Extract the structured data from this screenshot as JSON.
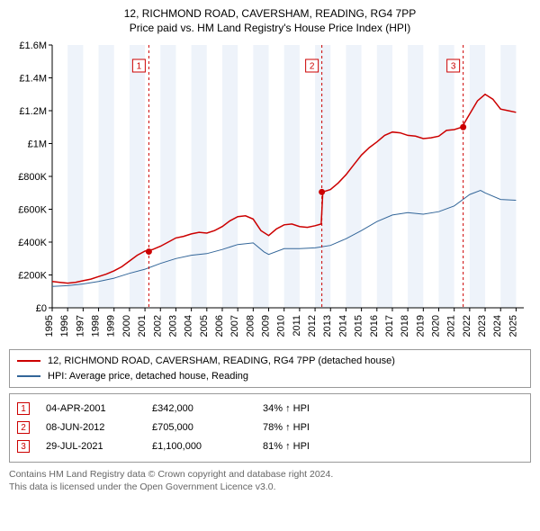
{
  "title": "12, RICHMOND ROAD, CAVERSHAM, READING, RG4 7PP",
  "subtitle": "Price paid vs. HM Land Registry's House Price Index (HPI)",
  "chart": {
    "type": "line",
    "background_color": "#ffffff",
    "band_color": "#eef3fa",
    "axis_color": "#000000",
    "x_years": [
      1995,
      1996,
      1997,
      1998,
      1999,
      2000,
      2001,
      2002,
      2003,
      2004,
      2005,
      2006,
      2007,
      2008,
      2009,
      2010,
      2011,
      2012,
      2013,
      2014,
      2015,
      2016,
      2017,
      2018,
      2019,
      2020,
      2021,
      2022,
      2023,
      2024,
      2025
    ],
    "x_start": 1995,
    "x_end": 2025.5,
    "ylim": [
      0,
      1600000
    ],
    "ytick_step": 200000,
    "ytick_labels": [
      "£0",
      "£200K",
      "£400K",
      "£600K",
      "£800K",
      "£1M",
      "£1.2M",
      "£1.4M",
      "£1.6M"
    ],
    "series_red": {
      "color": "#cc0000",
      "width": 1.5,
      "points": [
        [
          1995,
          160000
        ],
        [
          1995.5,
          155000
        ],
        [
          1996,
          150000
        ],
        [
          1996.5,
          155000
        ],
        [
          1997,
          165000
        ],
        [
          1997.5,
          175000
        ],
        [
          1998,
          190000
        ],
        [
          1998.5,
          205000
        ],
        [
          1999,
          225000
        ],
        [
          1999.5,
          250000
        ],
        [
          2000,
          285000
        ],
        [
          2000.5,
          320000
        ],
        [
          2001,
          345000
        ],
        [
          2001.5,
          355000
        ],
        [
          2002,
          375000
        ],
        [
          2002.5,
          400000
        ],
        [
          2003,
          425000
        ],
        [
          2003.5,
          435000
        ],
        [
          2004,
          450000
        ],
        [
          2004.5,
          460000
        ],
        [
          2005,
          455000
        ],
        [
          2005.5,
          470000
        ],
        [
          2006,
          495000
        ],
        [
          2006.5,
          530000
        ],
        [
          2007,
          555000
        ],
        [
          2007.5,
          560000
        ],
        [
          2008,
          540000
        ],
        [
          2008.5,
          470000
        ],
        [
          2009,
          440000
        ],
        [
          2009.5,
          480000
        ],
        [
          2010,
          505000
        ],
        [
          2010.5,
          510000
        ],
        [
          2011,
          495000
        ],
        [
          2011.5,
          490000
        ],
        [
          2012,
          500000
        ],
        [
          2012.4,
          510000
        ],
        [
          2012.5,
          705000
        ],
        [
          2013,
          720000
        ],
        [
          2013.5,
          760000
        ],
        [
          2014,
          810000
        ],
        [
          2014.5,
          870000
        ],
        [
          2015,
          930000
        ],
        [
          2015.5,
          975000
        ],
        [
          2016,
          1010000
        ],
        [
          2016.5,
          1050000
        ],
        [
          2017,
          1070000
        ],
        [
          2017.5,
          1065000
        ],
        [
          2018,
          1050000
        ],
        [
          2018.5,
          1045000
        ],
        [
          2019,
          1030000
        ],
        [
          2019.5,
          1035000
        ],
        [
          2020,
          1045000
        ],
        [
          2020.5,
          1080000
        ],
        [
          2021,
          1085000
        ],
        [
          2021.5,
          1100000
        ],
        [
          2022,
          1180000
        ],
        [
          2022.5,
          1260000
        ],
        [
          2023,
          1300000
        ],
        [
          2023.5,
          1270000
        ],
        [
          2024,
          1210000
        ],
        [
          2024.5,
          1200000
        ],
        [
          2025,
          1190000
        ]
      ]
    },
    "series_blue": {
      "color": "#336699",
      "width": 1.0,
      "points": [
        [
          1995,
          130000
        ],
        [
          1996,
          135000
        ],
        [
          1997,
          145000
        ],
        [
          1998,
          160000
        ],
        [
          1999,
          180000
        ],
        [
          2000,
          210000
        ],
        [
          2001,
          235000
        ],
        [
          2002,
          270000
        ],
        [
          2003,
          300000
        ],
        [
          2004,
          320000
        ],
        [
          2005,
          330000
        ],
        [
          2006,
          355000
        ],
        [
          2007,
          385000
        ],
        [
          2008,
          395000
        ],
        [
          2008.7,
          340000
        ],
        [
          2009,
          325000
        ],
        [
          2010,
          360000
        ],
        [
          2011,
          360000
        ],
        [
          2012,
          365000
        ],
        [
          2013,
          380000
        ],
        [
          2014,
          420000
        ],
        [
          2015,
          470000
        ],
        [
          2016,
          525000
        ],
        [
          2017,
          565000
        ],
        [
          2018,
          580000
        ],
        [
          2019,
          570000
        ],
        [
          2020,
          585000
        ],
        [
          2021,
          620000
        ],
        [
          2022,
          690000
        ],
        [
          2022.7,
          715000
        ],
        [
          2023,
          700000
        ],
        [
          2024,
          660000
        ],
        [
          2025,
          655000
        ]
      ]
    },
    "markers": [
      {
        "n": "1",
        "year": 2001.25,
        "value": 342000
      },
      {
        "n": "2",
        "year": 2012.44,
        "value": 705000
      },
      {
        "n": "3",
        "year": 2021.58,
        "value": 1100000
      }
    ]
  },
  "legend": {
    "red": {
      "label": "12, RICHMOND ROAD, CAVERSHAM, READING, RG4 7PP (detached house)",
      "color": "#cc0000"
    },
    "blue": {
      "label": "HPI: Average price, detached house, Reading",
      "color": "#336699"
    }
  },
  "footnotes": [
    {
      "n": "1",
      "date": "04-APR-2001",
      "price": "£342,000",
      "pct": "34% ↑ HPI"
    },
    {
      "n": "2",
      "date": "08-JUN-2012",
      "price": "£705,000",
      "pct": "78% ↑ HPI"
    },
    {
      "n": "3",
      "date": "29-JUL-2021",
      "price": "£1,100,000",
      "pct": "81% ↑ HPI"
    }
  ],
  "credits": {
    "line1": "Contains HM Land Registry data © Crown copyright and database right 2024.",
    "line2": "This data is licensed under the Open Government Licence v3.0."
  }
}
